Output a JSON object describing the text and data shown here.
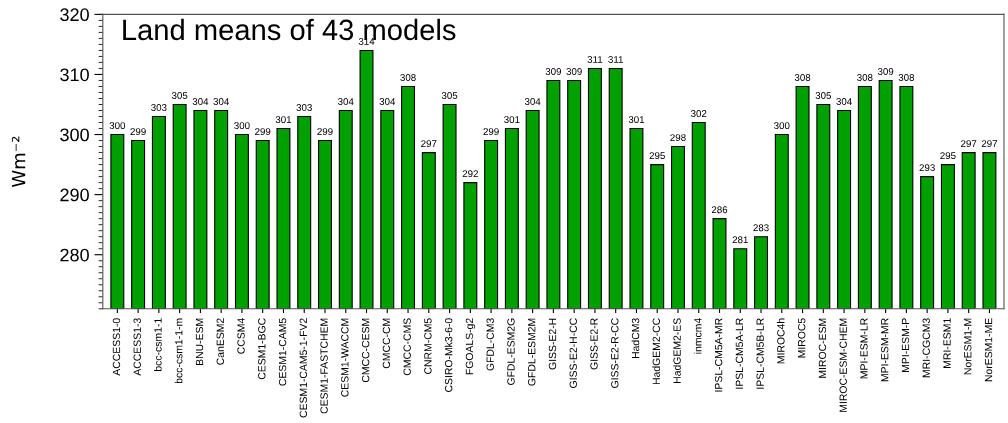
{
  "chart_data": {
    "type": "bar",
    "title": "Land means of 43 models",
    "ylabel": "Wm⁻²",
    "categories": [
      "ACCESS1-0",
      "ACCESS1-3",
      "bcc-csm1-1",
      "bcc-csm1-1-m",
      "BNU-ESM",
      "CanESM2",
      "CCSM4",
      "CESM1-BGC",
      "CESM1-CAM5",
      "CESM1-CAM5-1-FV2",
      "CESM1-FASTCHEM",
      "CESM1-WACCM",
      "CMCC-CESM",
      "CMCC-CM",
      "CMCC-CMS",
      "CNRM-CM5",
      "CSIRO-Mk3-6-0",
      "FGOALS-g2",
      "GFDL-CM3",
      "GFDL-ESM2G",
      "GFDL-ESM2M",
      "GISS-E2-H",
      "GISS-E2-H-CC",
      "GISS-E2-R",
      "GISS-E2-R-CC",
      "HadCM3",
      "HadGEM2-CC",
      "HadGEM2-ES",
      "inmcm4",
      "IPSL-CM5A-MR",
      "IPSL-CM5A-LR",
      "IPSL-CM5B-LR",
      "MIROC4h",
      "MIROC5",
      "MIROC-ESM",
      "MIROC-ESM-CHEM",
      "MPI-ESM-LR",
      "MPI-ESM-MR",
      "MPI-ESM-P",
      "MRI-CGCM3",
      "MRI-ESM1",
      "NorESM1-M",
      "NorESM1-ME"
    ],
    "values": [
      300,
      299,
      303,
      305,
      304,
      304,
      300,
      299,
      301,
      303,
      299,
      304,
      314,
      304,
      308,
      297,
      305,
      292,
      299,
      301,
      304,
      309,
      309,
      311,
      311,
      301,
      295,
      298,
      302,
      286,
      281,
      283,
      300,
      308,
      305,
      304,
      308,
      309,
      308,
      293,
      295,
      297,
      297
    ],
    "color": "#00a000",
    "ylim": [
      271,
      320
    ],
    "yticks": [
      280,
      290,
      300,
      310,
      320
    ],
    "data_labels": true,
    "grid": false
  }
}
